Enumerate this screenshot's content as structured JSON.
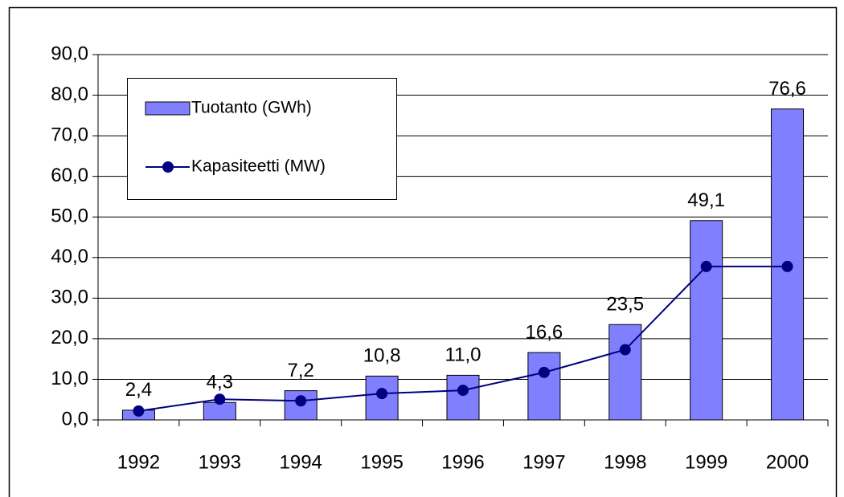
{
  "chart_data": {
    "type": "bar",
    "categories": [
      "1992",
      "1993",
      "1994",
      "1995",
      "1996",
      "1997",
      "1998",
      "1999",
      "2000"
    ],
    "series": [
      {
        "name": "Tuotanto (GWh)",
        "type": "bar",
        "color": "#8080ff",
        "values": [
          2.4,
          4.3,
          7.2,
          10.8,
          11.0,
          16.6,
          23.5,
          49.1,
          76.6
        ],
        "value_labels": [
          "2,4",
          "4,3",
          "7,2",
          "10,8",
          "11,0",
          "16,6",
          "23,5",
          "49,1",
          "76,6"
        ]
      },
      {
        "name": "Kapasiteetti (MW)",
        "type": "line",
        "color": "#000080",
        "values": [
          2.2,
          5.1,
          4.7,
          6.5,
          7.3,
          11.7,
          17.3,
          37.8,
          37.8
        ]
      }
    ],
    "ylim": [
      0,
      90
    ],
    "yticks": [
      {
        "value": 0,
        "label": "0,0"
      },
      {
        "value": 10,
        "label": "10,0"
      },
      {
        "value": 20,
        "label": "20,0"
      },
      {
        "value": 30,
        "label": "30,0"
      },
      {
        "value": 40,
        "label": "40,0"
      },
      {
        "value": 50,
        "label": "50,0"
      },
      {
        "value": 60,
        "label": "60,0"
      },
      {
        "value": 70,
        "label": "70,0"
      },
      {
        "value": 80,
        "label": "80,0"
      },
      {
        "value": 90,
        "label": "90,0"
      }
    ],
    "grid": true,
    "legend": "upper left"
  }
}
